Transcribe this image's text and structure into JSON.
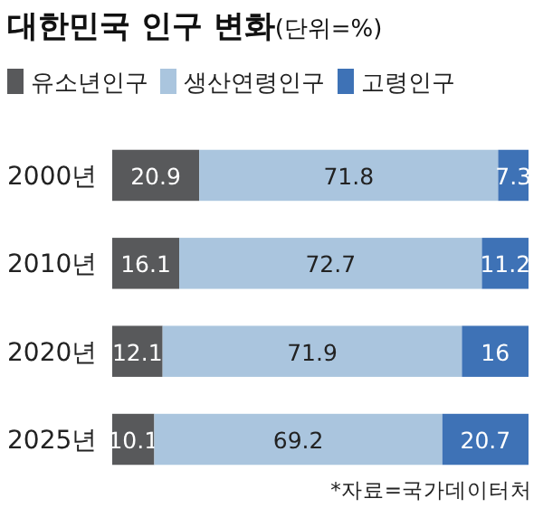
{
  "chart_data": {
    "type": "bar",
    "orientation": "horizontal",
    "stacked": true,
    "title": "대한민국 인구 변화",
    "subtitle": "(단위=%)",
    "categories": [
      "2000년",
      "2010년",
      "2020년",
      "2025년"
    ],
    "series": [
      {
        "name": "유소년인구",
        "color": "#58595b",
        "values": [
          20.9,
          16.1,
          12.1,
          10.1
        ]
      },
      {
        "name": "생산연령인구",
        "color": "#aac5de",
        "values": [
          71.8,
          72.7,
          71.9,
          69.2
        ]
      },
      {
        "name": "고령인구",
        "color": "#3e72b6",
        "values": [
          7.3,
          11.2,
          16,
          20.7
        ]
      }
    ],
    "xlim": [
      0,
      100
    ],
    "data_labels": true,
    "legend": "top",
    "annotations": [
      "*자료=국가데이터처"
    ]
  }
}
